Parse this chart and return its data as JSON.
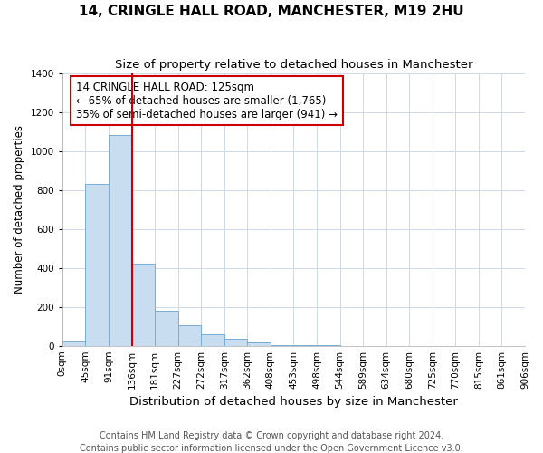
{
  "title": "14, CRINGLE HALL ROAD, MANCHESTER, M19 2HU",
  "subtitle": "Size of property relative to detached houses in Manchester",
  "xlabel": "Distribution of detached houses by size in Manchester",
  "ylabel": "Number of detached properties",
  "footer_line1": "Contains HM Land Registry data © Crown copyright and database right 2024.",
  "footer_line2": "Contains public sector information licensed under the Open Government Licence v3.0.",
  "bin_labels": [
    "0sqm",
    "45sqm",
    "91sqm",
    "136sqm",
    "181sqm",
    "227sqm",
    "272sqm",
    "317sqm",
    "362sqm",
    "408sqm",
    "453sqm",
    "498sqm",
    "544sqm",
    "589sqm",
    "634sqm",
    "680sqm",
    "725sqm",
    "770sqm",
    "815sqm",
    "861sqm",
    "906sqm"
  ],
  "bar_heights": [
    25,
    830,
    1080,
    420,
    180,
    105,
    60,
    35,
    15,
    5,
    2,
    1,
    0,
    0,
    0,
    0,
    0,
    0,
    0,
    0
  ],
  "bar_color": "#c8ddf0",
  "bar_edge_color": "#7aadd0",
  "property_line_bin": 3,
  "property_line_color": "#cc0000",
  "annotation_text_line1": "14 CRINGLE HALL ROAD: 125sqm",
  "annotation_text_line2": "← 65% of detached houses are smaller (1,765)",
  "annotation_text_line3": "35% of semi-detached houses are larger (941) →",
  "ylim": [
    0,
    1400
  ],
  "yticks": [
    0,
    200,
    400,
    600,
    800,
    1000,
    1200,
    1400
  ],
  "background_color": "#ffffff",
  "plot_bg_color": "#ffffff",
  "grid_color": "#d0d8e8",
  "title_fontsize": 11,
  "subtitle_fontsize": 9.5,
  "xlabel_fontsize": 9.5,
  "ylabel_fontsize": 8.5,
  "tick_fontsize": 7.5,
  "annotation_fontsize": 8.5,
  "footer_fontsize": 7
}
